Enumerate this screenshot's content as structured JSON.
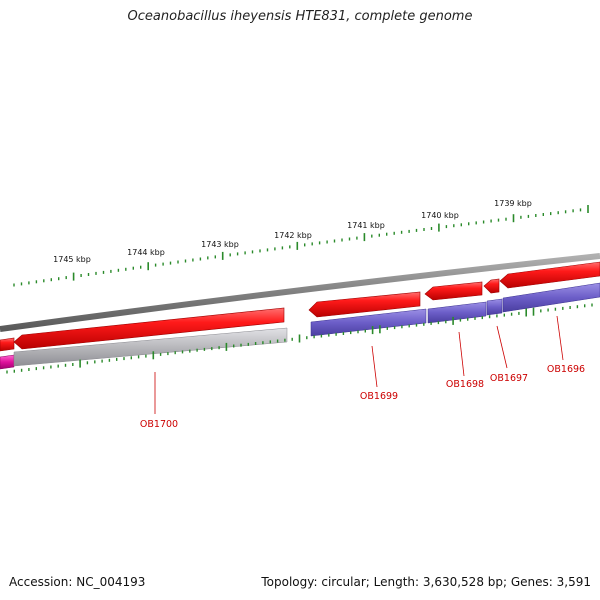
{
  "title": "Oceanobacillus iheyensis HTE831, complete genome",
  "scale_labels": [
    "1745 kbp",
    "1744 kbp",
    "1743 kbp",
    "1742 kbp",
    "1741 kbp",
    "1740 kbp",
    "1739 kbp"
  ],
  "gene_labels": [
    "OB1700",
    "OB1699",
    "OB1698",
    "OB1697",
    "OB1696"
  ],
  "footer": {
    "accession": "Accession: NC_004193",
    "summary": "Topology: circular; Length: 3,630,528 bp; Genes: 3,591"
  },
  "colors": {
    "ticks": "#2a8a2a",
    "backbone": "#7a7a7a",
    "forward_gene": "#ee0000",
    "reverse_cog_purple": "#6c5ec8",
    "reverse_cog_grey": "#b4b4b8",
    "reverse_cog_magenta": "#e0109c",
    "label_red": "#cc0000"
  }
}
